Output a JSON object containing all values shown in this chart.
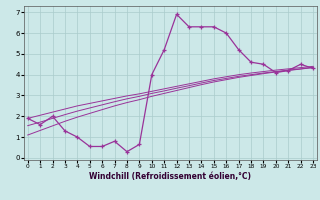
{
  "xlabel": "Windchill (Refroidissement éolien,°C)",
  "bg_color": "#cce8e8",
  "grid_color": "#aacccc",
  "line_color": "#993399",
  "x_data": [
    0,
    1,
    2,
    3,
    4,
    5,
    6,
    7,
    8,
    9,
    10,
    11,
    12,
    13,
    14,
    15,
    16,
    17,
    18,
    19,
    20,
    21,
    22,
    23
  ],
  "y_main": [
    1.9,
    1.6,
    2.0,
    1.3,
    1.0,
    0.55,
    0.55,
    0.8,
    0.3,
    0.65,
    4.0,
    5.2,
    6.9,
    6.3,
    6.3,
    6.3,
    6.0,
    5.2,
    4.6,
    4.5,
    4.1,
    4.2,
    4.5,
    4.3
  ],
  "y_reg1": [
    1.9,
    2.05,
    2.2,
    2.35,
    2.5,
    2.62,
    2.74,
    2.86,
    2.98,
    3.08,
    3.2,
    3.32,
    3.44,
    3.56,
    3.68,
    3.8,
    3.9,
    4.0,
    4.08,
    4.15,
    4.22,
    4.28,
    4.34,
    4.4
  ],
  "y_reg2": [
    1.55,
    1.72,
    1.9,
    2.08,
    2.25,
    2.4,
    2.55,
    2.7,
    2.84,
    2.96,
    3.1,
    3.22,
    3.35,
    3.47,
    3.6,
    3.72,
    3.82,
    3.92,
    4.0,
    4.08,
    4.15,
    4.22,
    4.28,
    4.35
  ],
  "y_reg3": [
    1.1,
    1.32,
    1.54,
    1.76,
    1.96,
    2.14,
    2.32,
    2.5,
    2.66,
    2.8,
    2.96,
    3.1,
    3.24,
    3.38,
    3.52,
    3.65,
    3.76,
    3.87,
    3.96,
    4.05,
    4.13,
    4.2,
    4.27,
    4.34
  ],
  "ylim": [
    0,
    7
  ],
  "xlim": [
    0,
    23
  ],
  "yticks": [
    0,
    1,
    2,
    3,
    4,
    5,
    6,
    7
  ],
  "xticks": [
    0,
    1,
    2,
    3,
    4,
    5,
    6,
    7,
    8,
    9,
    10,
    11,
    12,
    13,
    14,
    15,
    16,
    17,
    18,
    19,
    20,
    21,
    22,
    23
  ]
}
